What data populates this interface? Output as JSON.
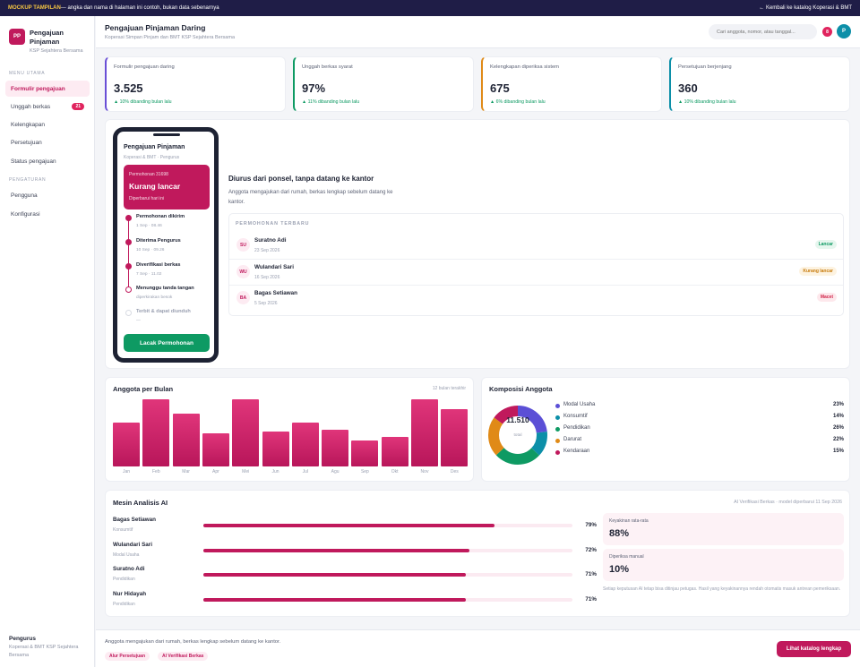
{
  "topbar": {
    "mock_label": "MOCKUP TAMPILAN",
    "mock_text": " — angka dan nama di halaman ini contoh, bukan data sebenarnya",
    "back_link": "← Kembali ke katalog Koperasi & BMT"
  },
  "brand": {
    "logo": "PP",
    "title": "Pengajuan Pinjaman",
    "subtitle": "KSP Sejahtera Bersama"
  },
  "sidebar": {
    "section_main": "MENU UTAMA",
    "section_settings": "PENGATURAN",
    "items": [
      {
        "label": "Formulir pengajuan",
        "active": true
      },
      {
        "label": "Unggah berkas",
        "badge": "21"
      },
      {
        "label": "Kelengkapan"
      },
      {
        "label": "Persetujuan"
      },
      {
        "label": "Status pengajuan"
      }
    ],
    "settings_items": [
      {
        "label": "Pengguna"
      },
      {
        "label": "Konfigurasi"
      }
    ],
    "footer_title": "Pengurus",
    "footer_sub": "Koperasi & BMT KSP Sejahtera Bersama"
  },
  "header": {
    "title": "Pengajuan Pinjaman Daring",
    "subtitle": "Koperasi Simpan Pinjam dan BMT KSP Sejahtera Bersama",
    "search_placeholder": "Cari anggota, nomor, atau tanggal...",
    "notif_count": "8",
    "avatar": "P"
  },
  "stats": [
    {
      "label": "Formulir pengajuan daring",
      "value": "3.525",
      "change": "▲ 10% dibanding bulan lalu",
      "accent": "#6a4fd6"
    },
    {
      "label": "Unggah berkas syarat",
      "value": "97%",
      "change": "▲ 11% dibanding bulan lalu",
      "accent": "#0e9a63"
    },
    {
      "label": "Kelengkapan diperiksa sistem",
      "value": "675",
      "change": "▲ 6% dibanding bulan lalu",
      "accent": "#e08a17"
    },
    {
      "label": "Persetujuan berjenjang",
      "value": "360",
      "change": "▲ 10% dibanding bulan lalu",
      "accent": "#0c8fa8"
    }
  ],
  "phone": {
    "title": "Pengajuan Pinjaman",
    "subtitle": "Koperasi & BMT · Pengurus",
    "card_number": "Permohonan 31698",
    "card_status": "Kurang lancar",
    "card_date": "Diperbarui hari ini",
    "timeline": [
      {
        "title": "Permohonan dikirim",
        "date": "1 Sep · 08.46",
        "state": "done"
      },
      {
        "title": "Diterima Pengurus",
        "date": "10 Sep · 09.26",
        "state": "done"
      },
      {
        "title": "Diverifikasi berkas",
        "date": "7 Sep · 11.02",
        "state": "done"
      },
      {
        "title": "Menunggu tanda tangan",
        "date": "diperkirakan besok",
        "state": "current"
      },
      {
        "title": "Terbit & dapat diunduh",
        "date": "—",
        "state": "pending"
      }
    ],
    "button": "Lacak Permohonan"
  },
  "hero": {
    "heading": "Diurus dari ponsel, tanpa datang ke kantor",
    "description": "Anggota mengajukan dari rumah, berkas lengkap sebelum datang ke kantor.",
    "recent_title": "PERMOHONAN TERBARU",
    "recent": [
      {
        "initials": "SU",
        "name": "Suratno Adi",
        "date": "23 Sep 2026",
        "status": "Lancar",
        "status_color": "#0e9a63",
        "status_bg": "#e6f6ee"
      },
      {
        "initials": "WU",
        "name": "Wulandari Sari",
        "date": "16 Sep 2026",
        "status": "Kurang lancar",
        "status_color": "#c77a0a",
        "status_bg": "#fdf3e1"
      },
      {
        "initials": "BA",
        "name": "Bagas Setiawan",
        "date": "5 Sep 2026",
        "status": "Macet",
        "status_color": "#d1264b",
        "status_bg": "#fde8ec"
      }
    ]
  },
  "monthly": {
    "title": "Anggota per Bulan",
    "subtitle": "12 bulan terakhir"
  },
  "composition": {
    "title": "Komposisi Anggota",
    "total": "11.510",
    "total_label": "total"
  },
  "chart_data": [
    {
      "type": "bar",
      "title": "Anggota per Bulan",
      "categories": [
        "Jan",
        "Feb",
        "Mar",
        "Apr",
        "Mei",
        "Jun",
        "Jul",
        "Agu",
        "Sep",
        "Okt",
        "Nov",
        "Des"
      ],
      "values": [
        65,
        100,
        79,
        49,
        100,
        52,
        65,
        55,
        39,
        44,
        100,
        85
      ],
      "ylim": [
        0,
        100
      ],
      "grid": false
    },
    {
      "type": "pie",
      "title": "Komposisi Anggota",
      "categories": [
        "Modal Usaha",
        "Konsumtif",
        "Pendidikan",
        "Darurat",
        "Kendaraan"
      ],
      "values": [
        23,
        14,
        26,
        22,
        15
      ],
      "colors": [
        "#5b4fd6",
        "#0c8fa8",
        "#0e9a63",
        "#e08a17",
        "#c0195c"
      ],
      "labels": [
        "23%",
        "14%",
        "26%",
        "22%",
        "15%"
      ]
    }
  ],
  "ai": {
    "title": "Mesin Analisis AI",
    "subtitle": "AI Verifikasi Berkas · model diperbarui 11 Sep 2026",
    "rows": [
      {
        "name": "Bagas Setiawan",
        "category": "Konsumtif",
        "percent": "79%",
        "value": 79
      },
      {
        "name": "Wulandari Sari",
        "category": "Modal Usaha",
        "percent": "72%",
        "value": 72
      },
      {
        "name": "Suratno Adi",
        "category": "Pendidikan",
        "percent": "71%",
        "value": 71
      },
      {
        "name": "Nur Hidayah",
        "category": "Pendidikan",
        "percent": "71%",
        "value": 71
      }
    ],
    "confidence_label": "Keyakinan rata-rata",
    "confidence_value": "88%",
    "manual_label": "Diperiksa manual",
    "manual_value": "10%",
    "note": "Setiap keputusan AI tetap bisa ditinjau petugas. Hasil yang keyakinannya rendah otomatis masuk antrean pemeriksaan."
  },
  "footer": {
    "text": "Anggota mengajukan dari rumah, berkas lengkap sebelum datang ke kantor.",
    "chips": [
      "Alur Persetujuan",
      "AI Verifikasi Berkas"
    ],
    "button": "Lihat katalog lengkap"
  }
}
